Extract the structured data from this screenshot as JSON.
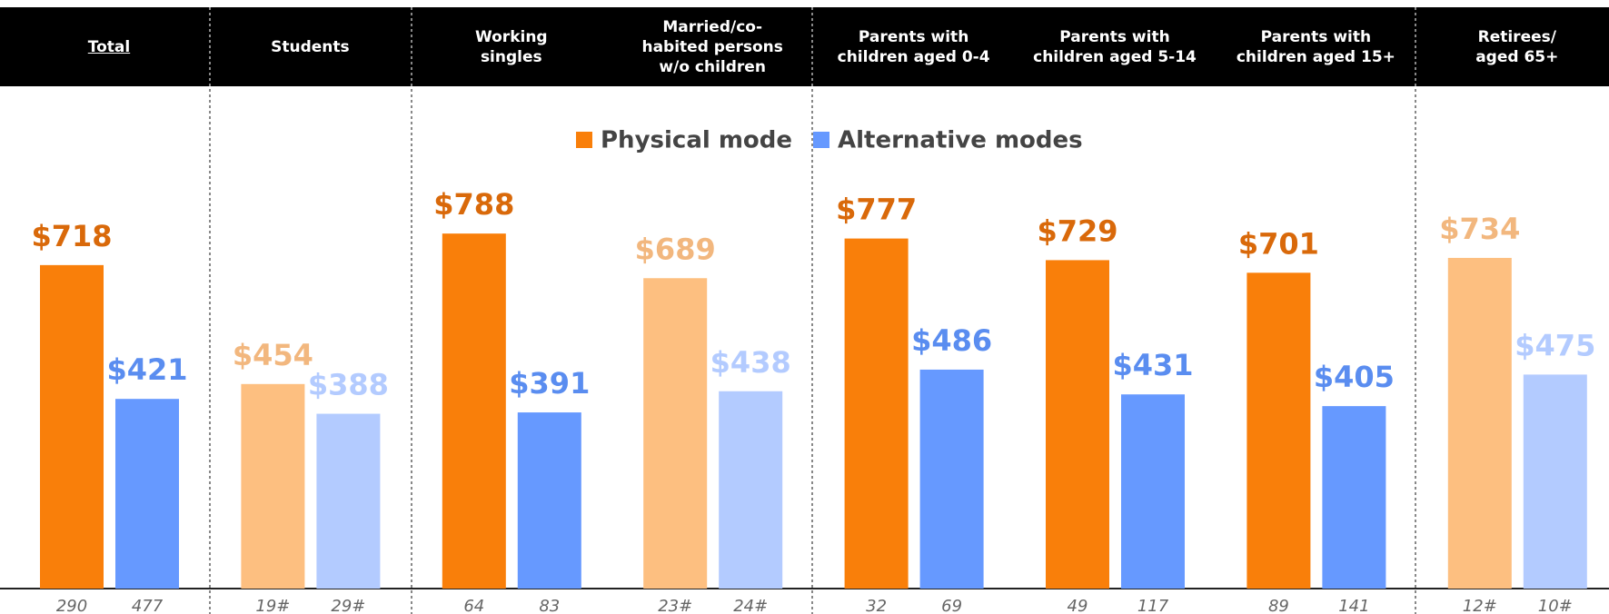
{
  "chart_data": {
    "type": "bar",
    "categories": [
      "Total",
      "Students",
      "Working\nsingles",
      "Married/co-\nhabited persons\nw/o children",
      "Parents with\nchildren aged 0-4",
      "Parents with\nchildren aged 5-14",
      "Parents with\nchildren aged 15+",
      "Retirees/\naged 65+"
    ],
    "series": [
      {
        "name": "Physical mode",
        "color": "#f97f0a",
        "colors": [
          "#f97f0a",
          "#fdbf80",
          "#f97f0a",
          "#fdbf80",
          "#f97f0a",
          "#f97f0a",
          "#f97f0a",
          "#fdbf80"
        ],
        "label_colors": [
          "#d9690a",
          "#f2b77e",
          "#d9690a",
          "#f2b77e",
          "#d9690a",
          "#d9690a",
          "#d9690a",
          "#f2b77e"
        ],
        "values": [
          718,
          454,
          788,
          689,
          777,
          729,
          701,
          734
        ],
        "value_labels": [
          "$718",
          "$454",
          "$788",
          "$689",
          "$777",
          "$729",
          "$701",
          "$734"
        ],
        "sample_labels": [
          "290",
          "19#",
          "64",
          "23#",
          "32",
          "49",
          "89",
          "12#"
        ]
      },
      {
        "name": "Alternative modes",
        "color": "#6699ff",
        "colors": [
          "#6699ff",
          "#b3cbff",
          "#6699ff",
          "#b3cbff",
          "#6699ff",
          "#6699ff",
          "#6699ff",
          "#b3cbff"
        ],
        "label_colors": [
          "#5a8df0",
          "#b3cbff",
          "#5a8df0",
          "#b3cbff",
          "#5a8df0",
          "#5a8df0",
          "#5a8df0",
          "#b3cbff"
        ],
        "values": [
          421,
          388,
          391,
          438,
          486,
          431,
          405,
          475
        ],
        "value_labels": [
          "$421",
          "$388",
          "$391",
          "$438",
          "$486",
          "$431",
          "$405",
          "$475"
        ],
        "sample_labels": [
          "477",
          "29#",
          "83",
          "24#",
          "69",
          "117",
          "141",
          "10#"
        ]
      }
    ],
    "ylim": [
      0,
      1000
    ]
  }
}
